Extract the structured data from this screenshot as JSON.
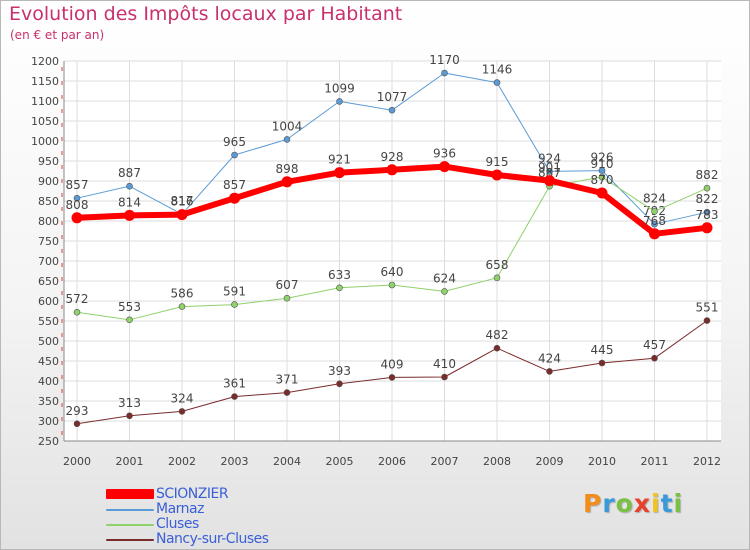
{
  "title": "Evolution des Impôts locaux par Habitant",
  "subtitle": "(en € et par an)",
  "brand": {
    "letters": [
      "P",
      "r",
      "o",
      "x",
      "i",
      "t",
      "i"
    ],
    "colors": [
      "#f28c1a",
      "#3a9ad9",
      "#7ac143",
      "#e8412c",
      "#f2c31a",
      "#3a9ad9",
      "#7ac143"
    ]
  },
  "chart_data": {
    "type": "line",
    "x": [
      "2000",
      "2001",
      "2002",
      "2003",
      "2004",
      "2005",
      "2006",
      "2007",
      "2008",
      "2009",
      "2010",
      "2011",
      "2012"
    ],
    "ylim": [
      250,
      1200
    ],
    "yticks": [
      250,
      300,
      350,
      400,
      450,
      500,
      550,
      600,
      650,
      700,
      750,
      800,
      850,
      900,
      950,
      1000,
      1050,
      1100,
      1150,
      1200
    ],
    "grid": true,
    "legend_position": "bottom-left",
    "series": [
      {
        "name": "Marnaz",
        "color": "#5b9bd5",
        "line_width": 1,
        "values": [
          857,
          887,
          817,
          965,
          1004,
          1099,
          1077,
          1170,
          1146,
          924,
          926,
          792,
          822
        ],
        "labels": [
          "857",
          "887",
          "817",
          "965",
          "1004",
          "1099",
          "1077",
          "1170",
          "1146",
          "924",
          "926",
          "792",
          "822"
        ]
      },
      {
        "name": "Cluses",
        "color": "#8fd16b",
        "line_width": 1,
        "values": [
          572,
          553,
          586,
          591,
          607,
          633,
          640,
          624,
          658,
          887,
          910,
          824,
          882
        ],
        "labels": [
          "572",
          "553",
          "586",
          "591",
          "607",
          "633",
          "640",
          "624",
          "658",
          "887",
          "910",
          "824",
          "882"
        ]
      },
      {
        "name": "Nancy-sur-Cluses",
        "color": "#7a2b2b",
        "line_width": 1,
        "values": [
          293,
          313,
          324,
          361,
          371,
          393,
          409,
          410,
          482,
          424,
          445,
          457,
          551
        ],
        "labels": [
          "293",
          "313",
          "324",
          "361",
          "371",
          "393",
          "409",
          "410",
          "482",
          "424",
          "445",
          "457",
          "551"
        ]
      },
      {
        "name": "SCIONZIER",
        "color": "#ff0000",
        "line_width": 6,
        "values": [
          808,
          814,
          816,
          857,
          898,
          921,
          928,
          936,
          915,
          901,
          870,
          768,
          783
        ],
        "labels": [
          "808",
          "814",
          "816",
          "857",
          "898",
          "921",
          "928",
          "936",
          "915",
          "901",
          "870",
          "768",
          "783"
        ]
      }
    ],
    "legend": [
      "SCIONZIER",
      "Marnaz",
      "Cluses",
      "Nancy-sur-Cluses"
    ]
  }
}
